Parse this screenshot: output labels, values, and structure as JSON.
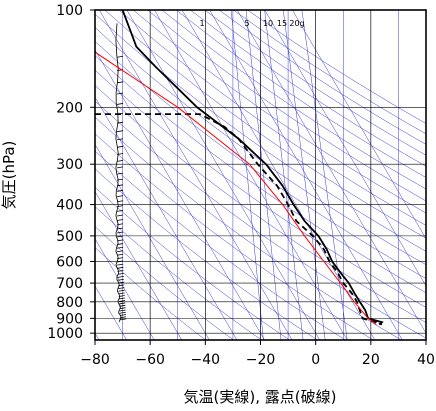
{
  "chart_data": {
    "type": "skew-t",
    "xlabel": "気温(実線), 露点(破線)",
    "ylabel": "気圧(hPa)",
    "xlim": [
      -80,
      40
    ],
    "ylim": [
      1050,
      100
    ],
    "y_scale": "log",
    "x_ticks": [
      -80,
      -60,
      -40,
      -20,
      0,
      20,
      40
    ],
    "x_tick_labels": [
      "−80",
      "−60",
      "−40",
      "−20",
      "0",
      "20",
      "40"
    ],
    "y_ticks": [
      100,
      200,
      300,
      400,
      500,
      600,
      700,
      800,
      900,
      1000
    ],
    "y_tick_labels": [
      "100",
      "200",
      "300",
      "400",
      "500",
      "600",
      "700",
      "800",
      "900",
      "1000"
    ],
    "mixing_ratio_labels": [
      "1",
      "5",
      "10",
      "15",
      "20g"
    ],
    "mixing_ratio_values": [
      1,
      5,
      10,
      15,
      20
    ],
    "colors": {
      "temperature": "#000000",
      "dewpoint": "#000000",
      "parcel": "#ff0000",
      "background_lines": "#3b3bd6",
      "grid": "#000000"
    },
    "series": [
      {
        "kind": "temperature",
        "points": [
          {
            "p": 100,
            "t": -70
          },
          {
            "p": 130,
            "t": -65
          },
          {
            "p": 150,
            "t": -58
          },
          {
            "p": 200,
            "t": -43
          },
          {
            "p": 250,
            "t": -28
          },
          {
            "p": 300,
            "t": -18
          },
          {
            "p": 350,
            "t": -12
          },
          {
            "p": 400,
            "t": -8
          },
          {
            "p": 450,
            "t": -4
          },
          {
            "p": 500,
            "t": 1
          },
          {
            "p": 550,
            "t": 4
          },
          {
            "p": 600,
            "t": 6
          },
          {
            "p": 650,
            "t": 9
          },
          {
            "p": 700,
            "t": 12
          },
          {
            "p": 750,
            "t": 14
          },
          {
            "p": 800,
            "t": 16
          },
          {
            "p": 850,
            "t": 18
          },
          {
            "p": 900,
            "t": 19
          },
          {
            "p": 925,
            "t": 24
          },
          {
            "p": 940,
            "t": 23
          }
        ]
      },
      {
        "kind": "dewpoint",
        "points": [
          {
            "p": 210,
            "t": -80
          },
          {
            "p": 210,
            "t": -42
          },
          {
            "p": 230,
            "t": -33
          },
          {
            "p": 250,
            "t": -28
          },
          {
            "p": 300,
            "t": -21
          },
          {
            "p": 350,
            "t": -14
          },
          {
            "p": 400,
            "t": -10
          },
          {
            "p": 450,
            "t": -7
          },
          {
            "p": 500,
            "t": -1
          },
          {
            "p": 550,
            "t": 3
          },
          {
            "p": 600,
            "t": 5
          },
          {
            "p": 650,
            "t": 8
          },
          {
            "p": 700,
            "t": 10
          },
          {
            "p": 750,
            "t": 13
          },
          {
            "p": 800,
            "t": 15
          },
          {
            "p": 850,
            "t": 16
          },
          {
            "p": 900,
            "t": 17
          },
          {
            "p": 925,
            "t": 22
          },
          {
            "p": 940,
            "t": 24
          }
        ]
      },
      {
        "kind": "parcel",
        "points": [
          {
            "p": 135,
            "t": -80
          },
          {
            "p": 200,
            "t": -50
          },
          {
            "p": 300,
            "t": -24
          },
          {
            "p": 400,
            "t": -12
          },
          {
            "p": 500,
            "t": -4
          },
          {
            "p": 600,
            "t": 3
          },
          {
            "p": 700,
            "t": 9
          },
          {
            "p": 800,
            "t": 14
          },
          {
            "p": 900,
            "t": 19
          },
          {
            "p": 940,
            "t": 22
          }
        ]
      }
    ]
  }
}
